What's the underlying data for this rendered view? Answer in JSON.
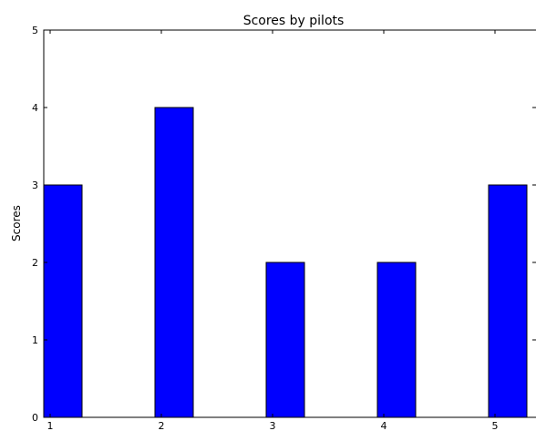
{
  "chart_data": {
    "type": "bar",
    "title": "Scores by pilots",
    "xlabel": "",
    "ylabel": "Scores",
    "categories": [
      "1",
      "2",
      "3",
      "4",
      "5"
    ],
    "values": [
      3,
      4,
      2,
      2,
      3
    ],
    "ylim": [
      0,
      5
    ],
    "yticks": [
      0,
      1,
      2,
      3,
      4,
      5
    ],
    "bar_color": "#0000ff",
    "grid": false,
    "legend": "none"
  }
}
